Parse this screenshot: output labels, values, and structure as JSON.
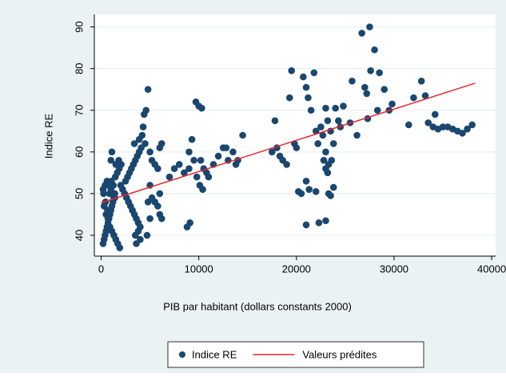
{
  "chart_data": {
    "type": "scatter",
    "xlabel": "PIB par habitant (dollars constants 2000)",
    "ylabel": "Indice RE",
    "xlim": [
      -700,
      40400
    ],
    "ylim": [
      35,
      93
    ],
    "xticks": [
      0,
      10000,
      20000,
      30000,
      40000
    ],
    "yticks": [
      40,
      50,
      60,
      70,
      80,
      90
    ],
    "grid": true,
    "legend": "bottom",
    "series": [
      {
        "name": "Indice RE",
        "type": "scatter",
        "color": "#1a476f",
        "x": [
          200,
          300,
          400,
          500,
          600,
          700,
          800,
          900,
          1000,
          1100,
          1200,
          1300,
          1400,
          200,
          400,
          600,
          800,
          1000,
          1200,
          1400,
          300,
          500,
          700,
          900,
          1100,
          1300,
          1500,
          1700,
          1900,
          250,
          450,
          650,
          850,
          1050,
          1250,
          1450,
          1650,
          1850,
          2050,
          1000,
          1100,
          1500,
          1800,
          2000,
          2200,
          2400,
          2600,
          2800,
          3000,
          3200,
          3400,
          3600,
          3800,
          4000,
          3500,
          3600,
          4000,
          3800,
          2500,
          2700,
          2900,
          3100,
          3300,
          3500,
          3700,
          3900,
          4100,
          3400,
          3900,
          4200,
          4300,
          4400,
          4600,
          4800,
          4500,
          5000,
          5200,
          5500,
          5800,
          6000,
          6200,
          5000,
          5200,
          5500,
          5800,
          6000,
          6200,
          4800,
          5000,
          4700,
          6000,
          7000,
          7500,
          8000,
          8500,
          9000,
          9500,
          9300,
          9000,
          8800,
          9100,
          9700,
          10000,
          10300,
          10200,
          10500,
          10800,
          11000,
          9800,
          10100,
          10400,
          11500,
          12000,
          12500,
          13000,
          13500,
          14000,
          14500,
          13800,
          12800,
          17500,
          17800,
          18000,
          18300,
          18600,
          19000,
          19300,
          19500,
          19800,
          20000,
          20200,
          20500,
          20700,
          21000,
          21200,
          21500,
          21000,
          21000,
          21300,
          21800,
          22000,
          22200,
          22000,
          22300,
          22500,
          22700,
          23000,
          23200,
          23000,
          23300,
          23500,
          23800,
          23000,
          23300,
          23600,
          22800,
          23000,
          23200,
          23500,
          23800,
          24000,
          24300,
          24500,
          24800,
          25700,
          25500,
          26200,
          26700,
          27000,
          27200,
          27500,
          27300,
          27600,
          28000,
          28300,
          28500,
          29000,
          29500,
          29800,
          31500,
          32000,
          32800,
          33200,
          33500,
          34000,
          34200,
          34500,
          35000,
          35500,
          36000,
          36500,
          37000,
          37500,
          38000
        ],
        "values": [
          38,
          39,
          40,
          41,
          42,
          43,
          44,
          45,
          46,
          47,
          48,
          49,
          50,
          51,
          52,
          53,
          52,
          51,
          50,
          49,
          47,
          45,
          44,
          42,
          41,
          40,
          39,
          38,
          37,
          50,
          48,
          46,
          50,
          53,
          52,
          54,
          55,
          56,
          57,
          58,
          60,
          57,
          58,
          52,
          51,
          50,
          49,
          48,
          47,
          46,
          45,
          44,
          43,
          42,
          40,
          38,
          39,
          41,
          53,
          54,
          55,
          56,
          57,
          58,
          59,
          60,
          61,
          62,
          63,
          64,
          66,
          69,
          70,
          75,
          62,
          60,
          58,
          57,
          56,
          61,
          62,
          52,
          49,
          48,
          47,
          45,
          44,
          48,
          44,
          40,
          50,
          54,
          56,
          57,
          55,
          56,
          58,
          63,
          60,
          42,
          43,
          72,
          71,
          70.5,
          58,
          56,
          55,
          54,
          54,
          52,
          51,
          57,
          59,
          61,
          58,
          60,
          58,
          64,
          57,
          61,
          60,
          67.5,
          61,
          59,
          58,
          57,
          73,
          79.5,
          62,
          61,
          50.5,
          50,
          78,
          75.5,
          73,
          70,
          53,
          42.5,
          51,
          79,
          65,
          62,
          50.5,
          43,
          66,
          64,
          70.5,
          67.5,
          43.5,
          50,
          65,
          62,
          60,
          57,
          58,
          58,
          56,
          55,
          49.5,
          51.5,
          70.5,
          67.5,
          66,
          71,
          77,
          67,
          64,
          88.5,
          75.5,
          74,
          90,
          68,
          79.5,
          84.5,
          70,
          79,
          75,
          70,
          71.5,
          66.5,
          73,
          77,
          73.5,
          67,
          66,
          69,
          65.5,
          66,
          66,
          65.5,
          65,
          64.5,
          65.5,
          66.5
        ]
      },
      {
        "name": "Valeurs prédites",
        "type": "line",
        "color": "#e8262b",
        "x": [
          0,
          38300
        ],
        "values": [
          47.8,
          76.5
        ]
      }
    ]
  }
}
